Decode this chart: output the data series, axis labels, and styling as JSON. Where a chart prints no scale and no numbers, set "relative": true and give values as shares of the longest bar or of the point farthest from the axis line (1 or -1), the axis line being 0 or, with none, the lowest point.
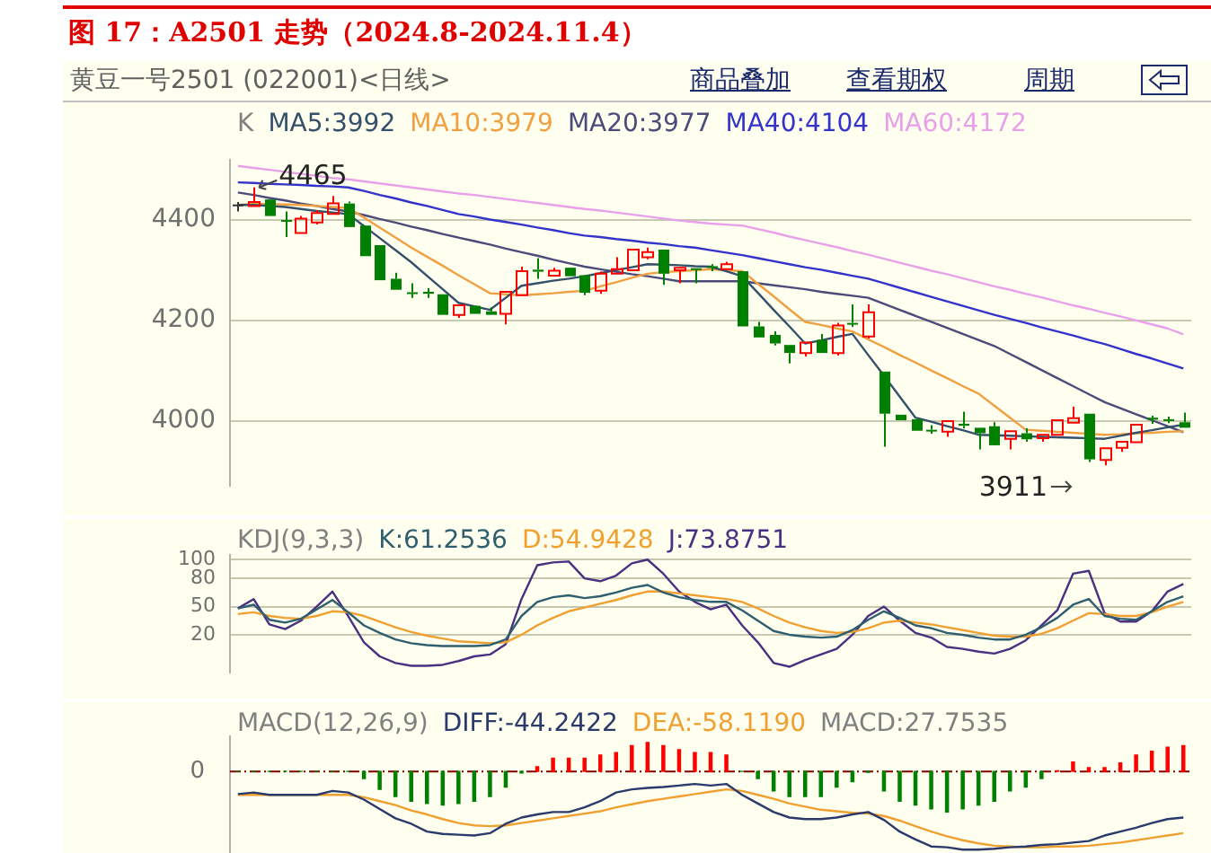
{
  "chart_data": [
    {
      "type": "candlestick",
      "title": "图 17：A2501 走势（2024.8-2024.11.4）",
      "subtitle": "黄豆一号2501 (022001)<日线>",
      "legend_title": "K",
      "legend": "top left",
      "grid": "y",
      "tick_labels": "y",
      "categories": [
        null,
        null,
        null,
        null,
        null,
        null,
        null,
        null,
        null,
        null,
        null,
        null,
        null,
        null,
        null,
        null,
        null,
        null,
        null,
        null,
        null,
        null,
        null,
        null,
        null,
        null,
        null,
        null,
        null,
        null,
        null,
        null,
        null,
        null,
        null,
        null,
        null,
        null,
        null,
        null,
        null,
        null,
        null,
        null,
        null,
        null,
        null,
        null,
        null,
        null,
        null,
        null,
        null,
        null,
        null,
        null,
        null,
        null,
        null,
        null,
        null
      ],
      "ylim": [
        3870,
        4520
      ],
      "yticks": [
        4000,
        4200,
        4400
      ],
      "ohlc": [
        [
          4431,
          4436,
          4417,
          4430
        ],
        [
          4428,
          4465,
          4428,
          4436
        ],
        [
          4441,
          4441,
          4408,
          4408
        ],
        [
          4400,
          4417,
          4366,
          4397
        ],
        [
          4374,
          4408,
          4374,
          4403
        ],
        [
          4395,
          4420,
          4391,
          4414
        ],
        [
          4412,
          4448,
          4412,
          4433
        ],
        [
          4433,
          4437,
          4386,
          4386
        ],
        [
          4389,
          4389,
          4328,
          4328
        ],
        [
          4350,
          4350,
          4280,
          4280
        ],
        [
          4283,
          4295,
          4261,
          4261
        ],
        [
          4256,
          4274,
          4245,
          4253
        ],
        [
          4257,
          4264,
          4245,
          4253
        ],
        [
          4252,
          4252,
          4211,
          4211
        ],
        [
          4211,
          4230,
          4205,
          4230
        ],
        [
          4229,
          4229,
          4213,
          4213
        ],
        [
          4218,
          4226,
          4211,
          4211
        ],
        [
          4213,
          4257,
          4192,
          4257
        ],
        [
          4250,
          4307,
          4250,
          4298
        ],
        [
          4301,
          4324,
          4283,
          4297
        ],
        [
          4289,
          4305,
          4289,
          4299
        ],
        [
          4305,
          4305,
          4288,
          4288
        ],
        [
          4290,
          4290,
          4250,
          4255
        ],
        [
          4259,
          4297,
          4253,
          4293
        ],
        [
          4293,
          4326,
          4293,
          4302
        ],
        [
          4300,
          4341,
          4300,
          4341
        ],
        [
          4326,
          4345,
          4322,
          4336
        ],
        [
          4341,
          4341,
          4271,
          4293
        ],
        [
          4300,
          4305,
          4274,
          4305
        ],
        [
          4304,
          4304,
          4274,
          4302
        ],
        [
          4308,
          4312,
          4298,
          4306
        ],
        [
          4302,
          4317,
          4302,
          4312
        ],
        [
          4298,
          4298,
          4188,
          4188
        ],
        [
          4188,
          4197,
          4166,
          4166
        ],
        [
          4171,
          4178,
          4150,
          4154
        ],
        [
          4151,
          4151,
          4114,
          4135
        ],
        [
          4135,
          4156,
          4128,
          4156
        ],
        [
          4161,
          4173,
          4135,
          4135
        ],
        [
          4135,
          4195,
          4130,
          4190
        ],
        [
          4195,
          4232,
          4187,
          4193
        ],
        [
          4168,
          4232,
          4164,
          4216
        ],
        [
          4098,
          4098,
          3948,
          4014
        ],
        [
          4012,
          4012,
          4001,
          4001
        ],
        [
          4003,
          4003,
          3980,
          3980
        ],
        [
          3982,
          3991,
          3974,
          3980
        ],
        [
          3978,
          3999,
          3968,
          3999
        ],
        [
          3994,
          4018,
          3985,
          3990
        ],
        [
          3986,
          3986,
          3943,
          3975
        ],
        [
          3989,
          3997,
          3951,
          3951
        ],
        [
          3964,
          3979,
          3943,
          3979
        ],
        [
          3975,
          3985,
          3958,
          3963
        ],
        [
          3965,
          3972,
          3958,
          3972
        ],
        [
          3972,
          4001,
          3972,
          4001
        ],
        [
          3996,
          4028,
          3996,
          4005
        ],
        [
          4014,
          4014,
          3918,
          3923
        ],
        [
          3922,
          3945,
          3911,
          3945
        ],
        [
          3946,
          3958,
          3938,
          3958
        ],
        [
          3957,
          3992,
          3957,
          3992
        ],
        [
          4006,
          4010,
          3994,
          4002
        ],
        [
          4003,
          4008,
          3995,
          4000
        ],
        [
          3997,
          4016,
          3986,
          3986
        ]
      ],
      "colors": [
        "#333333",
        "#ff0000",
        "#008000",
        "#008000",
        "#ff0000",
        "#ff0000",
        "#ff0000",
        "#008000",
        "#008000",
        "#008000",
        "#008000",
        "#008000",
        "#008000",
        "#008000",
        "#ff0000",
        "#008000",
        "#008000",
        "#ff0000",
        "#ff0000",
        "#008000",
        "#ff0000",
        "#008000",
        "#008000",
        "#ff0000",
        "#ff0000",
        "#ff0000",
        "#ff0000",
        "#008000",
        "#ff0000",
        "#008000",
        "#008000",
        "#ff0000",
        "#008000",
        "#008000",
        "#008000",
        "#008000",
        "#ff0000",
        "#008000",
        "#ff0000",
        "#008000",
        "#ff0000",
        "#008000",
        "#008000",
        "#008000",
        "#008000",
        "#ff0000",
        "#008000",
        "#008000",
        "#008000",
        "#ff0000",
        "#008000",
        "#ff0000",
        "#ff0000",
        "#ff0000",
        "#008000",
        "#ff0000",
        "#ff0000",
        "#ff0000",
        "#008000",
        "#008000",
        "#008000"
      ],
      "series": [
        {
          "type": "line",
          "name": "MA5:3992",
          "color": "#34506a",
          "values": [
            4430,
            4430,
            4428,
            4426,
            4422,
            4418,
            4415,
            4412,
            4388,
            4364,
            4340,
            4316,
            4289,
            4262,
            4235,
            4228,
            4221,
            4245,
            4269,
            4274,
            4279,
            4283,
            4288,
            4294,
            4300,
            4306,
            4312,
            4311,
            4310,
            4308,
            4307,
            4298,
            4288,
            4255,
            4221,
            4188,
            4154,
            4160,
            4167,
            4173,
            4131,
            4090,
            4048,
            4006,
            3998,
            3989,
            3981,
            3972,
            3971,
            3970,
            3969,
            3968,
            3967,
            3966,
            3965,
            3964,
            3970,
            3976,
            3981,
            3987,
            3992
          ]
        },
        {
          "type": "line",
          "name": "MA10:3979",
          "color": "#f0a040",
          "values": [
            4430,
            4432,
            4432,
            4431,
            4430,
            4428,
            4426,
            4424,
            4405,
            4385,
            4365,
            4345,
            4327,
            4309,
            4290,
            4272,
            4254,
            4252,
            4250,
            4252,
            4254,
            4257,
            4259,
            4268,
            4276,
            4285,
            4293,
            4296,
            4298,
            4300,
            4302,
            4300,
            4298,
            4273,
            4248,
            4222,
            4197,
            4191,
            4184,
            4178,
            4162,
            4147,
            4131,
            4116,
            4100,
            4085,
            4069,
            4054,
            4030,
            4006,
            3982,
            3980,
            3978,
            3976,
            3974,
            3972,
            3973,
            3975,
            3976,
            3978,
            3979
          ]
        },
        {
          "type": "line",
          "name": "MA20:3977",
          "color": "#4b4b7a",
          "values": [
            4455,
            4450,
            4444,
            4439,
            4433,
            4428,
            4422,
            4417,
            4410,
            4402,
            4395,
            4387,
            4380,
            4372,
            4365,
            4358,
            4351,
            4343,
            4336,
            4329,
            4321,
            4314,
            4307,
            4302,
            4297,
            4292,
            4288,
            4283,
            4278,
            4278,
            4278,
            4278,
            4278,
            4274,
            4270,
            4266,
            4262,
            4257,
            4253,
            4249,
            4245,
            4233,
            4221,
            4209,
            4197,
            4185,
            4173,
            4161,
            4149,
            4133,
            4117,
            4101,
            4085,
            4069,
            4053,
            4037,
            4025,
            4013,
            4001,
            3989,
            3977
          ]
        },
        {
          "type": "line",
          "name": "MA40:4104",
          "color": "#3333cc",
          "values": [
            4475,
            4474,
            4472,
            4471,
            4470,
            4468,
            4467,
            4465,
            4458,
            4450,
            4443,
            4435,
            4428,
            4420,
            4412,
            4407,
            4401,
            4396,
            4391,
            4385,
            4380,
            4374,
            4369,
            4366,
            4362,
            4359,
            4355,
            4352,
            4348,
            4345,
            4340,
            4335,
            4330,
            4324,
            4318,
            4312,
            4306,
            4301,
            4295,
            4289,
            4283,
            4274,
            4265,
            4256,
            4247,
            4238,
            4229,
            4220,
            4211,
            4203,
            4195,
            4186,
            4178,
            4170,
            4161,
            4153,
            4143,
            4133,
            4124,
            4114,
            4104
          ]
        },
        {
          "type": "line",
          "name": "MA60:4172",
          "color": "#e8a0e8",
          "values": [
            4508,
            4504,
            4500,
            4496,
            4492,
            4488,
            4484,
            4481,
            4477,
            4473,
            4469,
            4465,
            4461,
            4457,
            4453,
            4450,
            4446,
            4442,
            4438,
            4434,
            4430,
            4426,
            4422,
            4419,
            4415,
            4411,
            4407,
            4403,
            4399,
            4396,
            4393,
            4391,
            4389,
            4382,
            4375,
            4367,
            4360,
            4353,
            4346,
            4338,
            4331,
            4323,
            4315,
            4307,
            4299,
            4292,
            4284,
            4276,
            4268,
            4261,
            4253,
            4246,
            4238,
            4230,
            4223,
            4215,
            4208,
            4200,
            4192,
            4184,
            4172
          ]
        }
      ],
      "annotations": [
        {
          "text": "4465",
          "y": 4465
        },
        "3911",
        "商品叠加",
        "查看期权",
        "周期"
      ]
    },
    {
      "type": "line",
      "legend_title": "KDJ(9,3,3)",
      "legend": "top left",
      "grid": "y",
      "tick_labels": "y",
      "categories": [
        null,
        null,
        null,
        null,
        null,
        null,
        null,
        null,
        null,
        null,
        null,
        null,
        null,
        null,
        null,
        null,
        null,
        null,
        null,
        null,
        null,
        null,
        null,
        null,
        null,
        null,
        null,
        null,
        null,
        null,
        null,
        null,
        null,
        null,
        null,
        null,
        null,
        null,
        null,
        null,
        null,
        null,
        null,
        null,
        null,
        null,
        null,
        null,
        null,
        null,
        null,
        null,
        null,
        null,
        null,
        null,
        null,
        null,
        null,
        null,
        null
      ],
      "ylim": [
        -20,
        105
      ],
      "yticks": [
        20,
        50,
        80,
        100
      ],
      "series": [
        {
          "name": "K:61.2536",
          "color": "#2f5f6f",
          "values": [
            48,
            52,
            36,
            33,
            37,
            47,
            57,
            44,
            30,
            22,
            15,
            11,
            9,
            8,
            8,
            8,
            9,
            15,
            40,
            55,
            60,
            62,
            59,
            61,
            65,
            70,
            73,
            65,
            60,
            57,
            55,
            55,
            46,
            35,
            24,
            20,
            18,
            17,
            18,
            25,
            36,
            45,
            38,
            30,
            27,
            22,
            20,
            17,
            15,
            15,
            20,
            28,
            38,
            52,
            58,
            40,
            37,
            36,
            45,
            55,
            61
          ]
        },
        {
          "name": "D:54.9428",
          "color": "#f0a030",
          "values": [
            42,
            44,
            40,
            38,
            37,
            40,
            45,
            44,
            40,
            34,
            28,
            23,
            19,
            16,
            13,
            12,
            11,
            12,
            20,
            30,
            38,
            45,
            49,
            53,
            57,
            62,
            66,
            66,
            64,
            62,
            60,
            58,
            55,
            48,
            40,
            33,
            28,
            24,
            22,
            23,
            27,
            33,
            35,
            33,
            31,
            28,
            25,
            22,
            19,
            18,
            18,
            21,
            27,
            35,
            43,
            42,
            40,
            40,
            44,
            50,
            55
          ]
        },
        {
          "name": "J:73.8751",
          "color": "#4a3080",
          "values": [
            48,
            58,
            31,
            26,
            35,
            50,
            66,
            40,
            12,
            -3,
            -10,
            -13,
            -13,
            -12,
            -8,
            -3,
            -1,
            10,
            58,
            94,
            97,
            98,
            80,
            77,
            83,
            96,
            100,
            85,
            66,
            55,
            47,
            52,
            30,
            12,
            -10,
            -14,
            -7,
            -1,
            5,
            20,
            40,
            50,
            35,
            22,
            17,
            7,
            5,
            2,
            0,
            5,
            14,
            30,
            46,
            85,
            88,
            43,
            34,
            34,
            45,
            66,
            74
          ]
        }
      ]
    },
    {
      "type": "bar",
      "relative": true,
      "legend_title": "MACD(12,26,9)",
      "legend": "top left",
      "tick_labels": false,
      "categories": [
        null,
        null,
        null,
        null,
        null,
        null,
        null,
        null,
        null,
        null,
        null,
        null,
        null,
        null,
        null,
        null,
        null,
        null,
        null,
        null,
        null,
        null,
        null,
        null,
        null,
        null,
        null,
        null,
        null,
        null,
        null,
        null,
        null,
        null,
        null,
        null,
        null,
        null,
        null,
        null,
        null,
        null,
        null,
        null,
        null,
        null,
        null,
        null,
        null,
        null,
        null,
        null,
        null,
        null,
        null,
        null,
        null,
        null,
        null,
        null,
        null
      ],
      "series": [
        {
          "type": "line",
          "name": "DIFF:-44.2422",
          "color": "#2a3a6a",
          "values": [
            -0.29,
            -0.27,
            -0.3,
            -0.3,
            -0.3,
            -0.3,
            -0.25,
            -0.27,
            -0.36,
            -0.48,
            -0.6,
            -0.67,
            -0.77,
            -0.8,
            -0.81,
            -0.82,
            -0.79,
            -0.67,
            -0.59,
            -0.55,
            -0.52,
            -0.52,
            -0.46,
            -0.38,
            -0.27,
            -0.23,
            -0.21,
            -0.2,
            -0.18,
            -0.16,
            -0.18,
            -0.16,
            -0.3,
            -0.41,
            -0.52,
            -0.59,
            -0.61,
            -0.61,
            -0.59,
            -0.55,
            -0.52,
            -0.62,
            -0.77,
            -0.87,
            -0.96,
            -0.97,
            -1,
            -1,
            -0.99,
            -0.97,
            -0.96,
            -0.94,
            -0.93,
            -0.91,
            -0.89,
            -0.82,
            -0.77,
            -0.72,
            -0.66,
            -0.61,
            -0.59
          ]
        },
        {
          "type": "line",
          "name": "DEA:-58.1190",
          "color": "#f0a030",
          "values": [
            -0.3,
            -0.3,
            -0.3,
            -0.3,
            -0.3,
            -0.3,
            -0.3,
            -0.3,
            -0.33,
            -0.38,
            -0.43,
            -0.5,
            -0.55,
            -0.61,
            -0.66,
            -0.69,
            -0.7,
            -0.69,
            -0.66,
            -0.63,
            -0.6,
            -0.57,
            -0.54,
            -0.51,
            -0.46,
            -0.42,
            -0.38,
            -0.35,
            -0.32,
            -0.29,
            -0.26,
            -0.23,
            -0.25,
            -0.3,
            -0.35,
            -0.41,
            -0.45,
            -0.49,
            -0.51,
            -0.53,
            -0.54,
            -0.57,
            -0.63,
            -0.7,
            -0.77,
            -0.83,
            -0.88,
            -0.92,
            -0.95,
            -0.96,
            -0.97,
            -0.97,
            -0.96,
            -0.96,
            -0.95,
            -0.93,
            -0.91,
            -0.88,
            -0.85,
            -0.82,
            -0.79
          ]
        },
        {
          "type": "bar",
          "name": "MACD:27.7535",
          "colors": [
            "#008000",
            "#008000",
            "#008000",
            "#008000",
            "#008000",
            "#008000",
            "#008000",
            "#008000",
            "#008000",
            "#008000",
            "#008000",
            "#008000",
            "#008000",
            "#008000",
            "#008000",
            "#008000",
            "#008000",
            "#008000",
            "#008000",
            "#ff0000",
            "#ff0000",
            "#ff0000",
            "#ff0000",
            "#ff0000",
            "#ff0000",
            "#ff0000",
            "#ff0000",
            "#ff0000",
            "#ff0000",
            "#ff0000",
            "#ff0000",
            "#ff0000",
            "#008000",
            "#008000",
            "#008000",
            "#008000",
            "#008000",
            "#008000",
            "#008000",
            "#008000",
            "#008000",
            "#008000",
            "#008000",
            "#008000",
            "#008000",
            "#008000",
            "#008000",
            "#008000",
            "#008000",
            "#008000",
            "#008000",
            "#008000",
            "#ff0000",
            "#ff0000",
            "#ff0000",
            "#ff0000",
            "#ff0000",
            "#ff0000",
            "#ff0000",
            "#ff0000",
            "#ff0000"
          ],
          "values": [
            0,
            0,
            0,
            0,
            0,
            0,
            0,
            0,
            -0.09,
            -0.23,
            -0.32,
            -0.38,
            -0.41,
            -0.43,
            -0.41,
            -0.38,
            -0.32,
            -0.2,
            -0.02,
            0.06,
            0.17,
            0.17,
            0.17,
            0.21,
            0.24,
            0.33,
            0.37,
            0.33,
            0.28,
            0.24,
            0.24,
            0.21,
            0,
            -0.09,
            -0.25,
            -0.32,
            -0.32,
            -0.32,
            -0.2,
            -0.13,
            -0.01,
            -0.25,
            -0.38,
            -0.43,
            -0.48,
            -0.52,
            -0.48,
            -0.43,
            -0.38,
            -0.25,
            -0.2,
            -0.09,
            0.01,
            0.12,
            0.05,
            0.05,
            0.11,
            0.21,
            0.26,
            0.31,
            0.33
          ]
        }
      ],
      "ref_lines": [
        {
          "axis": "y",
          "value": 0,
          "label": "0",
          "color": "#800000",
          "line_style": "dashed"
        }
      ]
    }
  ]
}
